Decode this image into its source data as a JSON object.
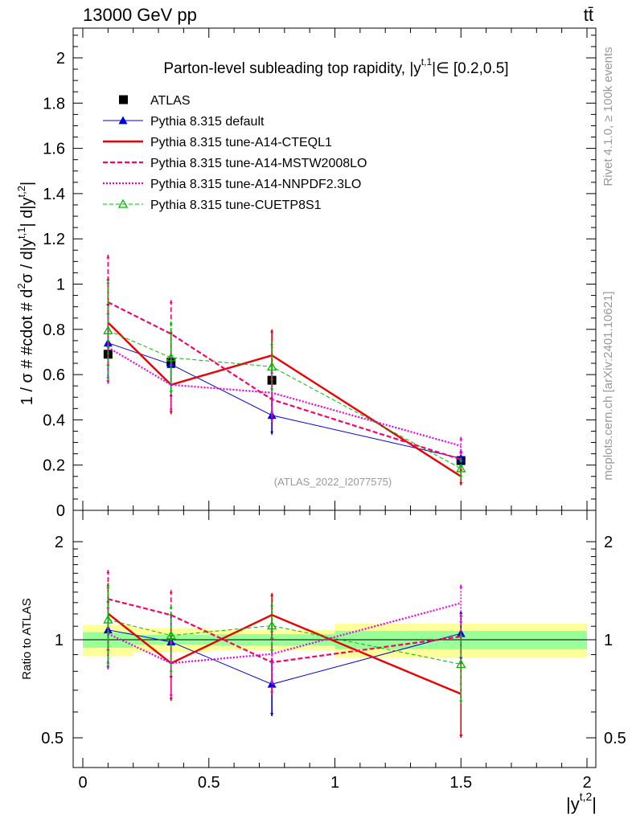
{
  "header": {
    "energy_label": "13000 GeV pp",
    "process_label": "tt̄",
    "side_label_rivet": "Rivet 4.1.0, ≥ 100k events",
    "side_label_mcplots": "mcplots.cern.ch [arXiv:2401.10621]"
  },
  "chart_data": {
    "type": "line",
    "title": "Parton-level subleading top rapidity, |y^{t,1}| ∈ [0.2,0.5]",
    "title_parts": {
      "main": "Parton-level subleading top rapidity, |y",
      "sup": "t,1",
      "tail": "|∈ [0.2,0.5]"
    },
    "xlabel": "|y^{t,2}|",
    "xlabel_parts": {
      "main": "|y",
      "sup": "t,2",
      "tail": "|"
    },
    "ylabel": "1 / σ # #cdot # d²σ / d|y^{t,1}| d|y^{t,2}|",
    "ylabel_parts": {
      "a": "1 / σ # #cdot # d",
      "sup1": "2",
      "b": "σ / d|y",
      "sup2": "t,1",
      "c": "| d|y",
      "sup3": "t,2",
      "d": "|"
    },
    "ratio_ylabel": "Ratio to ATLAS",
    "watermark": "(ATLAS_2022_I2077575)",
    "xlim": [
      -0.05,
      2.1
    ],
    "ylim": [
      0,
      2.14
    ],
    "ratio_ylim": [
      0.42,
      2.3
    ],
    "x_ticks": [
      0,
      0.5,
      1,
      1.5,
      2
    ],
    "x_tick_labels": [
      "0",
      "0.5",
      "1",
      "1.5",
      "2"
    ],
    "y_ticks": [
      0,
      0.2,
      0.4,
      0.6,
      0.8,
      1,
      1.2,
      1.4,
      1.6,
      1.8,
      2
    ],
    "y_tick_labels": [
      "0",
      "0.2",
      "0.4",
      "0.6",
      "0.8",
      "1",
      "1.2",
      "1.4",
      "1.6",
      "1.8",
      "2"
    ],
    "ratio_ticks": [
      0.5,
      1,
      2
    ],
    "ratio_tick_labels": [
      "0.5",
      "1",
      "2"
    ],
    "bin_edges": [
      0,
      0.2,
      0.5,
      1.0,
      2.0
    ],
    "x": [
      0.1,
      0.35,
      0.75,
      1.5
    ],
    "data": {
      "name": "ATLAS",
      "values": [
        0.69,
        0.655,
        0.575,
        0.22
      ],
      "errors": [
        0.02,
        0.02,
        0.02,
        0.01
      ],
      "band_stat": [
        0.055,
        0.035,
        0.04,
        0.065
      ],
      "band_total": [
        0.11,
        0.085,
        0.07,
        0.12
      ]
    },
    "series": [
      {
        "name": "Pythia 8.315 default",
        "color": "#0000dd",
        "dash": "none",
        "width": 1,
        "marker": "triangle-filled",
        "values": [
          0.74,
          0.645,
          0.42,
          0.23
        ],
        "errors": [
          0.18,
          0.15,
          0.085,
          0.04
        ]
      },
      {
        "name": "Pythia 8.315 tune-A14-CTEQL1",
        "color": "#ee0000",
        "dash": "none",
        "width": 2.4,
        "marker": "none",
        "values": [
          0.83,
          0.555,
          0.685,
          0.15
        ],
        "errors": [
          0.2,
          0.13,
          0.115,
          0.04
        ]
      },
      {
        "name": "Pythia 8.315 tune-A14-MSTW2008LO",
        "color": "#ff0066",
        "dash": "6,3",
        "width": 2.2,
        "marker": "none",
        "values": [
          0.92,
          0.78,
          0.49,
          0.225
        ],
        "errors": [
          0.21,
          0.15,
          0.1,
          0.04
        ]
      },
      {
        "name": "Pythia 8.315 tune-A14-NNPDF2.3LO",
        "color": "#ee00ee",
        "dash": "2,2",
        "width": 2.2,
        "marker": "none",
        "values": [
          0.72,
          0.555,
          0.52,
          0.285
        ],
        "errors": [
          0.16,
          0.12,
          0.1,
          0.04
        ]
      },
      {
        "name": "Pythia 8.315 tune-CUETP8S1",
        "color": "#00bb00",
        "dash": "5,3",
        "width": 1,
        "marker": "triangle-open",
        "values": [
          0.795,
          0.675,
          0.635,
          0.185
        ],
        "errors": [
          0.22,
          0.16,
          0.11,
          0.045
        ]
      }
    ]
  }
}
